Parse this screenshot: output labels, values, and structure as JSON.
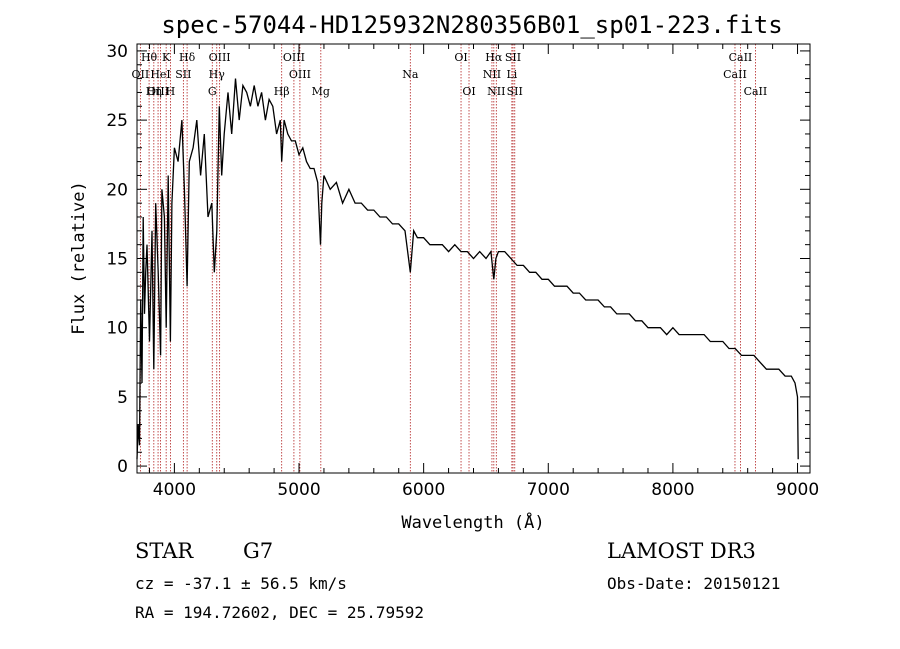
{
  "chart_data": {
    "type": "line",
    "title": "spec-57044-HD125932N280356B01_sp01-223.fits",
    "xlabel": "Wavelength (Å)",
    "ylabel": "Flux (relative)",
    "xlim": [
      3700,
      9100
    ],
    "ylim": [
      -0.5,
      30.5
    ],
    "xticks": [
      4000,
      5000,
      6000,
      7000,
      8000,
      9000
    ],
    "yticks": [
      0,
      5,
      10,
      15,
      20,
      25,
      30
    ],
    "spectrum": {
      "x": [
        3700,
        3710,
        3720,
        3730,
        3740,
        3750,
        3760,
        3770,
        3780,
        3800,
        3820,
        3835,
        3850,
        3870,
        3889,
        3900,
        3920,
        3934,
        3950,
        3968,
        3980,
        4000,
        4030,
        4060,
        4080,
        4102,
        4120,
        4150,
        4180,
        4210,
        4240,
        4270,
        4300,
        4320,
        4340,
        4360,
        4380,
        4400,
        4430,
        4460,
        4490,
        4520,
        4550,
        4580,
        4610,
        4640,
        4670,
        4700,
        4730,
        4760,
        4790,
        4820,
        4850,
        4861,
        4880,
        4910,
        4940,
        4970,
        5000,
        5030,
        5060,
        5090,
        5120,
        5150,
        5172,
        5183,
        5200,
        5250,
        5300,
        5350,
        5400,
        5450,
        5500,
        5550,
        5600,
        5650,
        5700,
        5750,
        5800,
        5850,
        5893,
        5920,
        5950,
        6000,
        6050,
        6100,
        6150,
        6200,
        6250,
        6300,
        6350,
        6400,
        6450,
        6500,
        6540,
        6563,
        6580,
        6600,
        6650,
        6700,
        6750,
        6800,
        6850,
        6900,
        6950,
        7000,
        7050,
        7100,
        7150,
        7200,
        7250,
        7300,
        7350,
        7400,
        7450,
        7500,
        7550,
        7600,
        7650,
        7700,
        7750,
        7800,
        7850,
        7900,
        7950,
        8000,
        8050,
        8100,
        8150,
        8200,
        8250,
        8300,
        8350,
        8400,
        8450,
        8500,
        8550,
        8600,
        8650,
        8700,
        8750,
        8800,
        8850,
        8900,
        8950,
        8980,
        9000,
        9005
      ],
      "y": [
        0.5,
        3,
        1.5,
        12,
        6,
        18,
        11,
        14,
        16,
        9,
        17,
        7,
        19,
        14,
        8,
        20,
        18,
        10,
        21,
        9,
        19,
        23,
        22,
        25,
        20,
        13,
        22,
        23,
        25,
        21,
        24,
        18,
        19,
        14,
        17,
        26,
        21,
        24,
        27,
        24,
        28,
        25,
        27.5,
        27,
        26,
        27.5,
        26,
        27,
        25,
        26.5,
        26,
        24,
        25,
        22,
        25,
        24,
        23.5,
        23.5,
        22.5,
        23,
        22,
        21.5,
        21.5,
        20.5,
        16,
        19,
        21,
        20,
        20.5,
        19,
        20,
        19,
        19,
        18.5,
        18.5,
        18,
        18,
        17.5,
        17.5,
        17,
        14,
        17,
        16.5,
        16.5,
        16,
        16,
        16,
        15.5,
        16,
        15.5,
        15.5,
        15,
        15.5,
        15,
        15.5,
        13.5,
        15,
        15.5,
        15.5,
        15,
        14.5,
        14.5,
        14,
        14,
        13.5,
        13.5,
        13,
        13,
        13,
        12.5,
        12.5,
        12,
        12,
        12,
        11.5,
        11.5,
        11,
        11,
        11,
        10.5,
        10.5,
        10,
        10,
        10,
        9.5,
        10,
        9.5,
        9.5,
        9.5,
        9.5,
        9.5,
        9,
        9,
        9,
        8.5,
        8.5,
        8,
        8,
        8,
        7.5,
        7,
        7,
        7,
        6.5,
        6.5,
        6,
        5,
        0.5
      ]
    },
    "lines": [
      {
        "label": "Hθ",
        "x": 3797,
        "row": 0
      },
      {
        "label": "K",
        "x": 3934,
        "row": 0
      },
      {
        "label": "Hδ",
        "x": 4102,
        "row": 0
      },
      {
        "label": "OIII",
        "x": 4363,
        "row": 0
      },
      {
        "label": "OIII",
        "x": 4959,
        "row": 0
      },
      {
        "label": "OI",
        "x": 6300,
        "row": 0
      },
      {
        "label": "Hα",
        "x": 6563,
        "row": 0
      },
      {
        "label": "SII",
        "x": 6717,
        "row": 0
      },
      {
        "label": "CaII",
        "x": 8542,
        "row": 0
      },
      {
        "label": "OII",
        "x": 3727,
        "row": 1
      },
      {
        "label": "HeI",
        "x": 3889,
        "row": 1
      },
      {
        "label": "SII",
        "x": 4072,
        "row": 1
      },
      {
        "label": "Hγ",
        "x": 4340,
        "row": 1
      },
      {
        "label": "OIII",
        "x": 5007,
        "row": 1
      },
      {
        "label": "Na",
        "x": 5893,
        "row": 1
      },
      {
        "label": "NII",
        "x": 6548,
        "row": 1
      },
      {
        "label": "Li",
        "x": 6708,
        "row": 1
      },
      {
        "label": "CaII",
        "x": 8498,
        "row": 1
      },
      {
        "label": "OIII",
        "x": 3869,
        "row": 2
      },
      {
        "label": "Hη",
        "x": 3835,
        "row": 2
      },
      {
        "label": "H",
        "x": 3968,
        "row": 2
      },
      {
        "label": "G",
        "x": 4304,
        "row": 2
      },
      {
        "label": "Hβ",
        "x": 4861,
        "row": 2
      },
      {
        "label": "Mg",
        "x": 5175,
        "row": 2
      },
      {
        "label": "OI",
        "x": 6364,
        "row": 2
      },
      {
        "label": "NII",
        "x": 6583,
        "row": 2
      },
      {
        "label": "SII",
        "x": 6731,
        "row": 2
      },
      {
        "label": "CaII",
        "x": 8662,
        "row": 2
      }
    ]
  },
  "info": {
    "object_class": "STAR",
    "subclass": "G7",
    "survey": "LAMOST DR3",
    "cz": "cz = -37.1 ± 56.5 km/s",
    "obs_date": "Obs-Date: 20150121",
    "coords": "RA = 194.72602, DEC =  25.79592"
  },
  "colors": {
    "spectrum": "#000000",
    "line_marker": "#b22222"
  }
}
